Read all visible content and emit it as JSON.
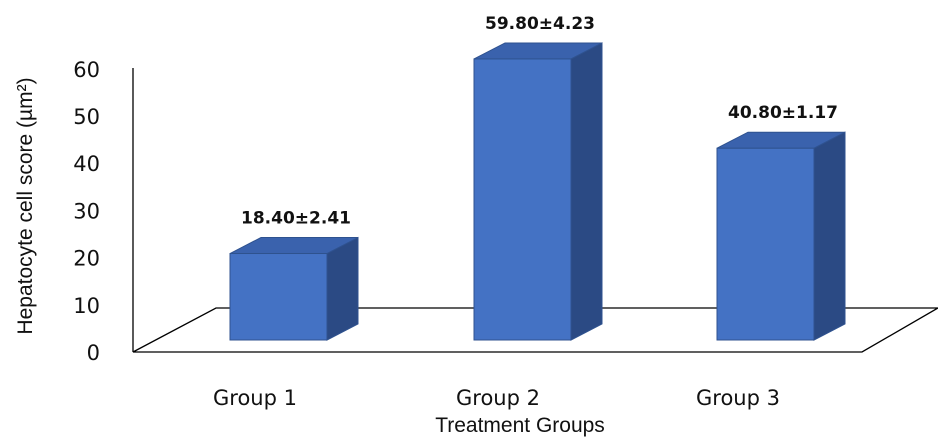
{
  "chart_data": {
    "type": "bar",
    "categories": [
      "Group 1",
      "Group 2",
      "Group 3"
    ],
    "values": [
      18.4,
      59.8,
      40.8
    ],
    "data_labels": [
      "18.40±2.41",
      "59.80±4.23",
      "40.80±1.17"
    ],
    "title": "",
    "xlabel": "Treatment Groups",
    "ylabel": "Hepatocyte cell score (µm²)",
    "ylim": [
      0,
      60
    ],
    "yticks": [
      0,
      10,
      20,
      30,
      40,
      50,
      60
    ],
    "grid": false,
    "legend": "none",
    "style": "3d-column",
    "colors": {
      "bar_front": "#4472c4",
      "bar_top": "#3a62ad",
      "bar_side": "#2b4a84",
      "bar_edge": "#2f528f",
      "axis": "#000000"
    }
  }
}
